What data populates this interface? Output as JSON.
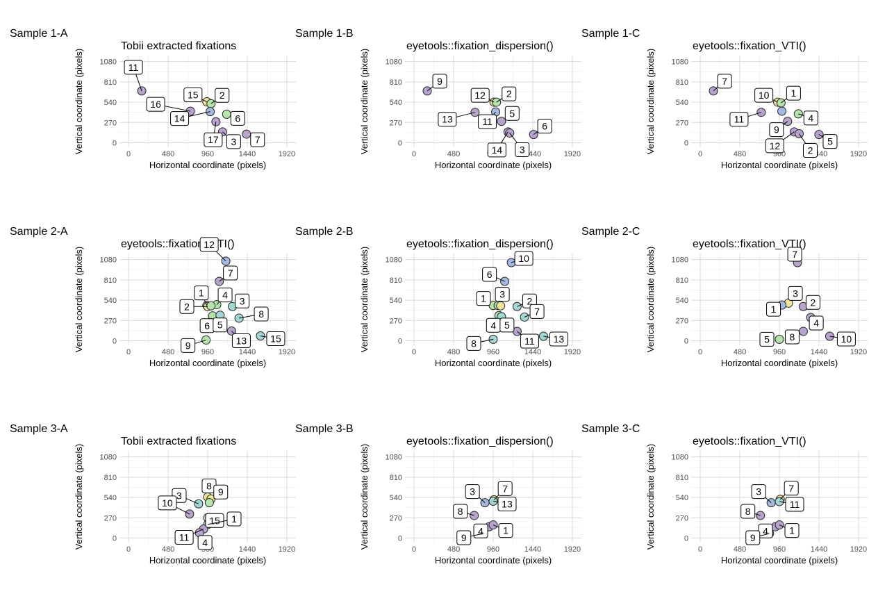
{
  "figure": {
    "xlabel": "Horizontal coordinate (pixels)",
    "ylabel": "Vertical coordinate (pixels)",
    "xticks": [
      0,
      480,
      960,
      1440,
      1920
    ],
    "yticks": [
      0,
      270,
      540,
      810,
      1080
    ],
    "xlim": [
      -110,
      2030
    ],
    "ylim": [
      -60,
      1160
    ],
    "grid": true,
    "palette": {
      "purple": "#b7a3cc",
      "blue": "#a5b8dd",
      "teal": "#a3d5d2",
      "green": "#b7e3ad",
      "yellow": "#eee49a"
    }
  },
  "chart_data": [
    {
      "tag": "Sample 1-A",
      "title": "Tobii extracted fixations",
      "type": "scatter",
      "points": [
        {
          "label": "11",
          "x": 160,
          "y": 690,
          "color": "purple"
        },
        {
          "label": "16",
          "x": 750,
          "y": 420,
          "color": "purple"
        },
        {
          "label": "15",
          "x": 950,
          "y": 545,
          "color": "yellow"
        },
        {
          "label": "2",
          "x": 1000,
          "y": 520,
          "color": "green"
        },
        {
          "label": "14",
          "x": 990,
          "y": 415,
          "color": "blue"
        },
        {
          "label": "6",
          "x": 1190,
          "y": 380,
          "color": "green"
        },
        {
          "label": "17",
          "x": 1060,
          "y": 280,
          "color": "purple"
        },
        {
          "label": "3",
          "x": 1140,
          "y": 145,
          "color": "purple"
        },
        {
          "label": "7",
          "x": 1430,
          "y": 115,
          "color": "purple"
        }
      ]
    },
    {
      "tag": "Sample 1-B",
      "title": "eyetools::fixation_dispersion()",
      "type": "scatter",
      "points": [
        {
          "label": "9",
          "x": 160,
          "y": 690,
          "color": "purple"
        },
        {
          "label": "12",
          "x": 970,
          "y": 540,
          "color": "yellow"
        },
        {
          "label": "2",
          "x": 1000,
          "y": 540,
          "color": "green"
        },
        {
          "label": "13",
          "x": 740,
          "y": 405,
          "color": "purple"
        },
        {
          "label": "11",
          "x": 990,
          "y": 410,
          "color": "blue"
        },
        {
          "label": "5",
          "x": 1190,
          "y": 390,
          "color": "green"
        },
        {
          "label": "",
          "x": 1060,
          "y": 285,
          "color": "purple"
        },
        {
          "label": "14",
          "x": 1140,
          "y": 145,
          "color": "purple"
        },
        {
          "label": "3",
          "x": 1160,
          "y": 130,
          "color": "purple"
        },
        {
          "label": "6",
          "x": 1450,
          "y": 110,
          "color": "purple"
        }
      ]
    },
    {
      "tag": "Sample 1-C",
      "title": "eyetools::fixation_VTI()",
      "type": "scatter",
      "points": [
        {
          "label": "7",
          "x": 160,
          "y": 690,
          "color": "purple"
        },
        {
          "label": "10",
          "x": 940,
          "y": 540,
          "color": "yellow"
        },
        {
          "label": "1",
          "x": 980,
          "y": 530,
          "color": "green"
        },
        {
          "label": "11",
          "x": 740,
          "y": 405,
          "color": "purple"
        },
        {
          "label": "",
          "x": 990,
          "y": 420,
          "color": "blue"
        },
        {
          "label": "4",
          "x": 1190,
          "y": 385,
          "color": "green"
        },
        {
          "label": "9",
          "x": 1060,
          "y": 285,
          "color": "purple"
        },
        {
          "label": "12",
          "x": 1140,
          "y": 145,
          "color": "purple"
        },
        {
          "label": "2",
          "x": 1200,
          "y": 120,
          "color": "purple"
        },
        {
          "label": "5",
          "x": 1440,
          "y": 110,
          "color": "purple"
        }
      ]
    },
    {
      "tag": "Sample 2-A",
      "title": "eyetools::fixation_VTI()",
      "type": "scatter",
      "points": [
        {
          "label": "12",
          "x": 1180,
          "y": 1060,
          "color": "blue"
        },
        {
          "label": "7",
          "x": 1100,
          "y": 790,
          "color": "purple"
        },
        {
          "label": "1",
          "x": 950,
          "y": 470,
          "color": "teal"
        },
        {
          "label": "4",
          "x": 1070,
          "y": 480,
          "color": "green"
        },
        {
          "label": "2",
          "x": 960,
          "y": 455,
          "color": "yellow"
        },
        {
          "label": "",
          "x": 1000,
          "y": 465,
          "color": "green"
        },
        {
          "label": "3",
          "x": 1260,
          "y": 455,
          "color": "teal"
        },
        {
          "label": "6",
          "x": 1020,
          "y": 330,
          "color": "green"
        },
        {
          "label": "5",
          "x": 1110,
          "y": 340,
          "color": "teal"
        },
        {
          "label": "8",
          "x": 1340,
          "y": 300,
          "color": "teal"
        },
        {
          "label": "9",
          "x": 940,
          "y": 10,
          "color": "green"
        },
        {
          "label": "13",
          "x": 1250,
          "y": 130,
          "color": "purple"
        },
        {
          "label": "15",
          "x": 1600,
          "y": 65,
          "color": "teal"
        }
      ]
    },
    {
      "tag": "Sample 2-B",
      "title": "eyetools::fixation_dispersion()",
      "type": "scatter",
      "points": [
        {
          "label": "10",
          "x": 1180,
          "y": 1040,
          "color": "blue"
        },
        {
          "label": "6",
          "x": 1100,
          "y": 790,
          "color": "blue"
        },
        {
          "label": "1",
          "x": 960,
          "y": 470,
          "color": "green"
        },
        {
          "label": "3",
          "x": 1020,
          "y": 470,
          "color": "green"
        },
        {
          "label": "",
          "x": 1050,
          "y": 465,
          "color": "yellow"
        },
        {
          "label": "2",
          "x": 1250,
          "y": 455,
          "color": "teal"
        },
        {
          "label": "4",
          "x": 1030,
          "y": 335,
          "color": "green"
        },
        {
          "label": "5",
          "x": 1060,
          "y": 320,
          "color": "teal"
        },
        {
          "label": "7",
          "x": 1340,
          "y": 315,
          "color": "teal"
        },
        {
          "label": "8",
          "x": 960,
          "y": 20,
          "color": "teal"
        },
        {
          "label": "11",
          "x": 1250,
          "y": 125,
          "color": "purple"
        },
        {
          "label": "13",
          "x": 1570,
          "y": 60,
          "color": "teal"
        }
      ]
    },
    {
      "tag": "Sample 2-C",
      "title": "eyetools::fixation_VTI()",
      "type": "scatter",
      "points": [
        {
          "label": "7",
          "x": 1180,
          "y": 1040,
          "color": "purple"
        },
        {
          "label": "3",
          "x": 1070,
          "y": 500,
          "color": "yellow"
        },
        {
          "label": "1",
          "x": 990,
          "y": 475,
          "color": "blue"
        },
        {
          "label": "2",
          "x": 1250,
          "y": 455,
          "color": "purple"
        },
        {
          "label": "4",
          "x": 1340,
          "y": 310,
          "color": "purple"
        },
        {
          "label": "5",
          "x": 960,
          "y": 20,
          "color": "green"
        },
        {
          "label": "8",
          "x": 1250,
          "y": 125,
          "color": "purple"
        },
        {
          "label": "10",
          "x": 1570,
          "y": 60,
          "color": "purple"
        }
      ]
    },
    {
      "tag": "Sample 3-A",
      "title": "Tobii extracted fixations",
      "type": "scatter",
      "points": [
        {
          "label": "8",
          "x": 960,
          "y": 545,
          "color": "yellow"
        },
        {
          "label": "9",
          "x": 1000,
          "y": 520,
          "color": "yellow"
        },
        {
          "label": "3",
          "x": 850,
          "y": 455,
          "color": "teal"
        },
        {
          "label": "",
          "x": 980,
          "y": 470,
          "color": "green"
        },
        {
          "label": "10",
          "x": 740,
          "y": 320,
          "color": "purple"
        },
        {
          "label": "15",
          "x": 960,
          "y": 270,
          "color": "green"
        },
        {
          "label": "1",
          "x": 960,
          "y": 180,
          "color": "teal"
        },
        {
          "label": "11",
          "x": 910,
          "y": 120,
          "color": "purple"
        },
        {
          "label": "4",
          "x": 860,
          "y": 70,
          "color": "purple"
        }
      ]
    },
    {
      "tag": "Sample 3-B",
      "title": "eyetools::fixation_dispersion()",
      "type": "scatter",
      "points": [
        {
          "label": "3",
          "x": 860,
          "y": 470,
          "color": "blue"
        },
        {
          "label": "7",
          "x": 970,
          "y": 510,
          "color": "yellow"
        },
        {
          "label": "13",
          "x": 960,
          "y": 490,
          "color": "teal"
        },
        {
          "label": "8",
          "x": 730,
          "y": 300,
          "color": "purple"
        },
        {
          "label": "4",
          "x": 910,
          "y": 150,
          "color": "purple"
        },
        {
          "label": "1",
          "x": 960,
          "y": 175,
          "color": "purple"
        },
        {
          "label": "9",
          "x": 840,
          "y": 60,
          "color": "purple"
        }
      ]
    },
    {
      "tag": "Sample 3-C",
      "title": "eyetools::fixation_VTI()",
      "type": "scatter",
      "points": [
        {
          "label": "3",
          "x": 860,
          "y": 470,
          "color": "blue"
        },
        {
          "label": "7",
          "x": 970,
          "y": 515,
          "color": "yellow"
        },
        {
          "label": "11",
          "x": 960,
          "y": 485,
          "color": "teal"
        },
        {
          "label": "8",
          "x": 730,
          "y": 300,
          "color": "purple"
        },
        {
          "label": "4",
          "x": 910,
          "y": 150,
          "color": "purple"
        },
        {
          "label": "1",
          "x": 960,
          "y": 175,
          "color": "purple"
        },
        {
          "label": "9",
          "x": 840,
          "y": 60,
          "color": "purple"
        }
      ]
    }
  ]
}
